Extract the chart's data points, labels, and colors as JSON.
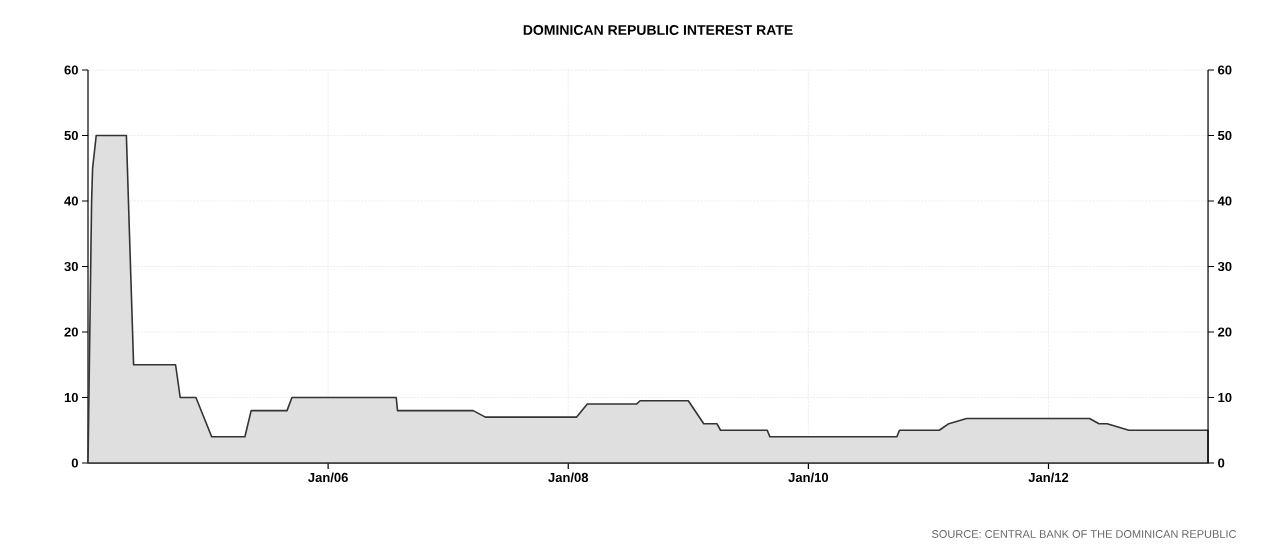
{
  "chart_data": {
    "type": "area",
    "title": "DOMINICAN REPUBLIC INTEREST RATE",
    "x": [
      "2004-01-01",
      "2004-01-12",
      "2004-01-15",
      "2004-01-26",
      "2004-04-27",
      "2004-05-19",
      "2004-09-24",
      "2004-10-08",
      "2004-11-25",
      "2005-01-12",
      "2005-04-23",
      "2005-05-12",
      "2005-08-29",
      "2005-09-13",
      "2006-07-27",
      "2006-07-31",
      "2007-03-18",
      "2007-04-24",
      "2008-01-26",
      "2008-02-28",
      "2008-07-27",
      "2008-08-07",
      "2009-01-01",
      "2009-02-17",
      "2009-03-29",
      "2009-04-09",
      "2009-08-29",
      "2009-09-06",
      "2010-09-27",
      "2010-10-05",
      "2011-02-03",
      "2011-03-04",
      "2011-04-27",
      "2012-05-05",
      "2012-06-03",
      "2012-06-28",
      "2012-09-02",
      "2013-05-01"
    ],
    "values": [
      0,
      40,
      45,
      50,
      50,
      15,
      15,
      10,
      10,
      4,
      4,
      8,
      8,
      10,
      10,
      8,
      8,
      7,
      7,
      9,
      9,
      9.5,
      9.5,
      6,
      6,
      5,
      5,
      4,
      4,
      5,
      5,
      6,
      6.8,
      6.8,
      6,
      6,
      5,
      5
    ],
    "color": "#333333",
    "xlim": [
      "2004-01-01",
      "2013-05-01"
    ],
    "xticks": [
      {
        "value": "2006-01-01",
        "label": "Jan/06"
      },
      {
        "value": "2008-01-01",
        "label": "Jan/08"
      },
      {
        "value": "2010-01-01",
        "label": "Jan/10"
      },
      {
        "value": "2012-01-01",
        "label": "Jan/12"
      }
    ],
    "ylim": [
      0,
      60
    ],
    "yticks": [
      0,
      10,
      20,
      30,
      40,
      50,
      60
    ],
    "y2lim": [
      0,
      60
    ],
    "y2ticks": [
      0,
      10,
      20,
      30,
      40,
      50,
      60
    ],
    "grid": true,
    "annotations": [
      "SOURCE: CENTRAL BANK OF THE DOMINICAN REPUBLIC"
    ]
  }
}
